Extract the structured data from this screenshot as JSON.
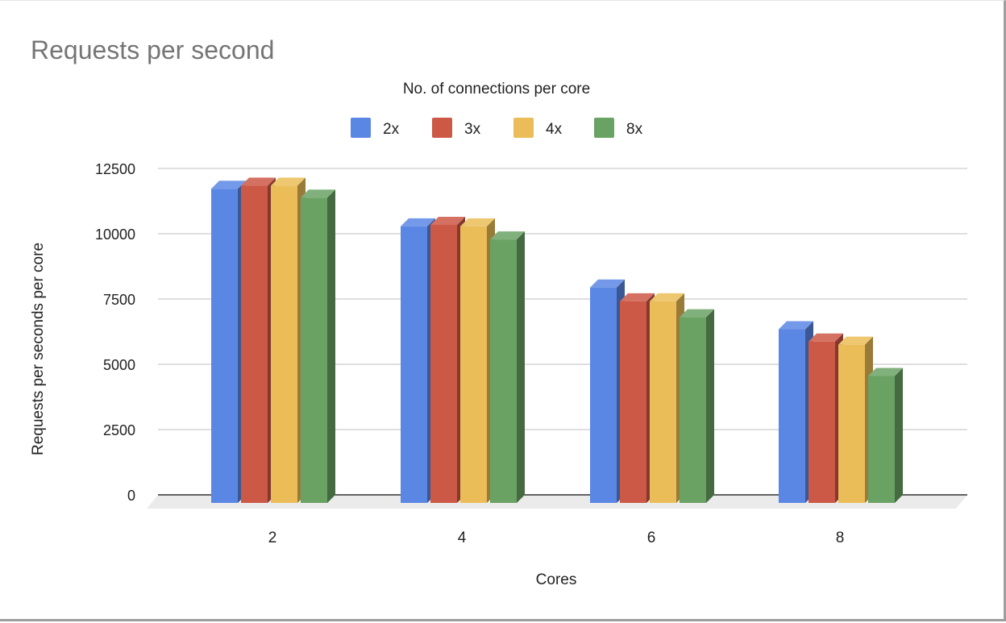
{
  "chart_data": {
    "type": "bar",
    "style": "3d-column",
    "title": "Requests per second",
    "legend_title": "No. of connections per core",
    "legend_position": "top",
    "xlabel": "Cores",
    "ylabel": "Requests per seconds per core",
    "categories": [
      "2",
      "4",
      "6",
      "8"
    ],
    "ylim": [
      0,
      12500
    ],
    "yticks": [
      0,
      2500,
      5000,
      7500,
      10000,
      12500
    ],
    "ytick_labels": [
      "0",
      "2500",
      "5000",
      "7500",
      "10000",
      "12500"
    ],
    "grid": true,
    "series": [
      {
        "name": "2x",
        "color": "#5b87e4",
        "values": [
          12030,
          10590,
          8250,
          6650
        ]
      },
      {
        "name": "3x",
        "color": "#cc5846",
        "values": [
          12150,
          10650,
          7720,
          6180
        ]
      },
      {
        "name": "4x",
        "color": "#ebbd58",
        "values": [
          12150,
          10590,
          7720,
          6060
        ]
      },
      {
        "name": "8x",
        "color": "#6aa264",
        "values": [
          11690,
          10090,
          7110,
          4860
        ]
      }
    ]
  },
  "colors": {
    "title": "#757575",
    "text": "#222222",
    "grid": "#cccccc",
    "baseline": "#333333",
    "floor": "#ebebeb"
  }
}
